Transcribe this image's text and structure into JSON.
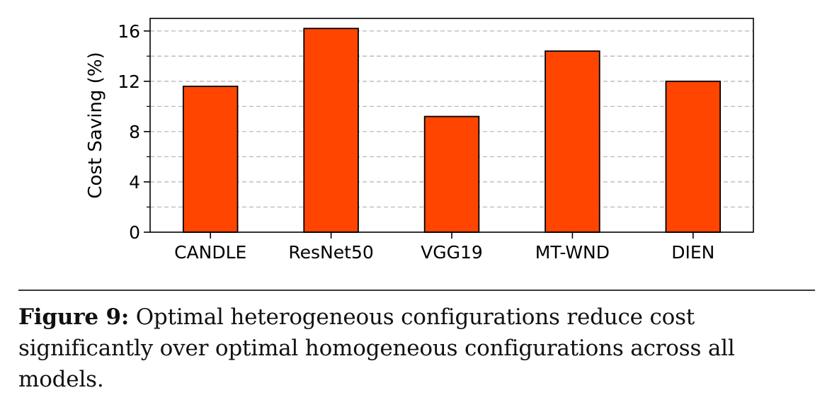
{
  "chart_data": {
    "type": "bar",
    "title": "",
    "xlabel": "",
    "ylabel": "Cost Saving (%)",
    "categories": [
      "CANDLE",
      "ResNet50",
      "VGG19",
      "MT-WND",
      "DIEN"
    ],
    "values": [
      11.6,
      16.2,
      9.2,
      14.4,
      12.0
    ],
    "ylim": [
      0,
      17
    ],
    "yticks": [
      0,
      4,
      8,
      12,
      16
    ],
    "ytick_labels": [
      "0",
      "4",
      "8",
      "12",
      "16"
    ],
    "grid": true,
    "legend": "none",
    "bar_color": "#FF4500",
    "bar_edge_color": "#000000"
  },
  "caption": {
    "label": "Figure 9:",
    "text": " Optimal heterogeneous configurations reduce cost significantly over optimal homogeneous configurations across all models."
  }
}
